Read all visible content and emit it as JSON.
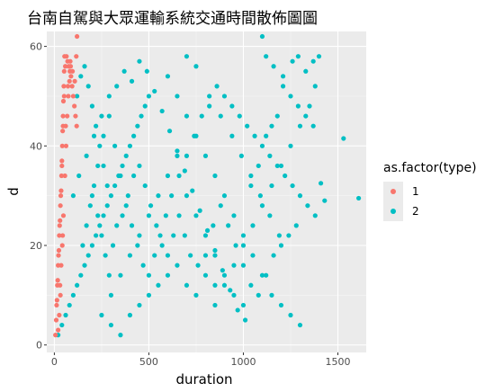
{
  "chart_data": {
    "type": "scatter",
    "title": "台南自駕與大眾運輸系統交通時間散佈圖圖",
    "xlabel": "duration",
    "ylabel": "d",
    "xlim": [
      -40,
      1650
    ],
    "ylim": [
      -1.5,
      63
    ],
    "xticks": [
      0,
      500,
      1000,
      1500
    ],
    "yticks": [
      0,
      20,
      40,
      60
    ],
    "grid": true,
    "legend": {
      "title": "as.factor(type)",
      "placement": "right"
    },
    "colors": {
      "1": "#F8766D",
      "2": "#00BFC4",
      "panel": "#EBEBEB",
      "grid": "#ffffff"
    },
    "series": [
      {
        "name": "1",
        "color": "#F8766D",
        "points": [
          [
            6,
            2
          ],
          [
            10,
            5
          ],
          [
            14,
            9
          ],
          [
            18,
            13
          ],
          [
            20,
            16
          ],
          [
            24,
            19
          ],
          [
            26,
            22
          ],
          [
            30,
            25
          ],
          [
            32,
            28
          ],
          [
            36,
            31
          ],
          [
            38,
            34
          ],
          [
            40,
            37
          ],
          [
            42,
            40
          ],
          [
            44,
            43
          ],
          [
            46,
            46
          ],
          [
            48,
            49
          ],
          [
            50,
            52
          ],
          [
            52,
            55
          ],
          [
            54,
            58
          ],
          [
            120,
            62
          ],
          [
            12,
            8
          ],
          [
            16,
            12
          ],
          [
            22,
            18
          ],
          [
            28,
            24
          ],
          [
            34,
            30
          ],
          [
            40,
            36
          ],
          [
            46,
            44
          ],
          [
            52,
            50
          ],
          [
            58,
            56
          ],
          [
            64,
            58
          ],
          [
            70,
            57
          ],
          [
            76,
            56
          ],
          [
            82,
            55
          ],
          [
            88,
            54
          ],
          [
            94,
            52
          ],
          [
            100,
            50
          ],
          [
            106,
            48
          ],
          [
            112,
            46
          ],
          [
            118,
            44
          ],
          [
            30,
            12
          ],
          [
            36,
            16
          ],
          [
            42,
            20
          ],
          [
            48,
            26
          ],
          [
            56,
            34
          ],
          [
            62,
            40
          ],
          [
            68,
            46
          ],
          [
            74,
            50
          ],
          [
            80,
            53
          ],
          [
            86,
            56
          ],
          [
            20,
            3
          ],
          [
            26,
            6
          ],
          [
            32,
            10
          ],
          [
            44,
            22
          ],
          [
            60,
            44
          ],
          [
            72,
            52
          ],
          [
            84,
            57
          ],
          [
            96,
            55
          ],
          [
            108,
            53
          ],
          [
            116,
            58
          ]
        ]
      },
      {
        "name": "2",
        "color": "#00BFC4",
        "points": [
          [
            20,
            2
          ],
          [
            40,
            4
          ],
          [
            60,
            6
          ],
          [
            80,
            8
          ],
          [
            100,
            10
          ],
          [
            120,
            12
          ],
          [
            140,
            14
          ],
          [
            160,
            16
          ],
          [
            180,
            18
          ],
          [
            200,
            20
          ],
          [
            220,
            22
          ],
          [
            240,
            24
          ],
          [
            260,
            26
          ],
          [
            280,
            28
          ],
          [
            300,
            30
          ],
          [
            320,
            32
          ],
          [
            340,
            34
          ],
          [
            360,
            36
          ],
          [
            380,
            38
          ],
          [
            400,
            40
          ],
          [
            420,
            42
          ],
          [
            440,
            44
          ],
          [
            460,
            46
          ],
          [
            480,
            48
          ],
          [
            500,
            50
          ],
          [
            120,
            50
          ],
          [
            140,
            54
          ],
          [
            160,
            56
          ],
          [
            180,
            52
          ],
          [
            200,
            48
          ],
          [
            220,
            44
          ],
          [
            240,
            40
          ],
          [
            260,
            36
          ],
          [
            280,
            32
          ],
          [
            100,
            30
          ],
          [
            130,
            34
          ],
          [
            170,
            38
          ],
          [
            210,
            42
          ],
          [
            250,
            46
          ],
          [
            290,
            50
          ],
          [
            330,
            52
          ],
          [
            370,
            55
          ],
          [
            410,
            53
          ],
          [
            450,
            57
          ],
          [
            490,
            55
          ],
          [
            530,
            51
          ],
          [
            570,
            47
          ],
          [
            610,
            43
          ],
          [
            650,
            39
          ],
          [
            690,
            35
          ],
          [
            730,
            31
          ],
          [
            770,
            27
          ],
          [
            810,
            23
          ],
          [
            850,
            19
          ],
          [
            890,
            15
          ],
          [
            930,
            11
          ],
          [
            970,
            7
          ],
          [
            1010,
            5
          ],
          [
            600,
            54
          ],
          [
            650,
            50
          ],
          [
            700,
            46
          ],
          [
            750,
            42
          ],
          [
            800,
            38
          ],
          [
            850,
            34
          ],
          [
            900,
            30
          ],
          [
            950,
            26
          ],
          [
            1000,
            22
          ],
          [
            1050,
            18
          ],
          [
            1100,
            14
          ],
          [
            1150,
            10
          ],
          [
            1200,
            8
          ],
          [
            1250,
            6
          ],
          [
            1300,
            4
          ],
          [
            1100,
            62
          ],
          [
            1120,
            58
          ],
          [
            1160,
            56
          ],
          [
            1210,
            54
          ],
          [
            1260,
            57
          ],
          [
            1290,
            58
          ],
          [
            1330,
            55
          ],
          [
            1370,
            57
          ],
          [
            1400,
            58
          ],
          [
            1380,
            52
          ],
          [
            1350,
            48
          ],
          [
            1300,
            44
          ],
          [
            1250,
            40
          ],
          [
            1200,
            36
          ],
          [
            1150,
            32
          ],
          [
            1100,
            28
          ],
          [
            1050,
            24
          ],
          [
            1000,
            20
          ],
          [
            950,
            16
          ],
          [
            900,
            12
          ],
          [
            850,
            8
          ],
          [
            1530,
            41.5
          ],
          [
            1410,
            32.5
          ],
          [
            1430,
            29
          ],
          [
            1610,
            29.5
          ],
          [
            700,
            58
          ],
          [
            750,
            56
          ],
          [
            820,
            50
          ],
          [
            880,
            46
          ],
          [
            940,
            42
          ],
          [
            990,
            38
          ],
          [
            1040,
            34
          ],
          [
            1090,
            30
          ],
          [
            1140,
            26
          ],
          [
            1190,
            22
          ],
          [
            300,
            10
          ],
          [
            350,
            14
          ],
          [
            400,
            18
          ],
          [
            450,
            22
          ],
          [
            500,
            26
          ],
          [
            550,
            30
          ],
          [
            600,
            34
          ],
          [
            650,
            38
          ],
          [
            700,
            30
          ],
          [
            750,
            26
          ],
          [
            800,
            22
          ],
          [
            850,
            18
          ],
          [
            900,
            14
          ],
          [
            950,
            10
          ],
          [
            1000,
            8
          ],
          [
            250,
            6
          ],
          [
            300,
            4
          ],
          [
            350,
            2
          ],
          [
            400,
            6
          ],
          [
            450,
            8
          ],
          [
            500,
            10
          ],
          [
            550,
            12
          ],
          [
            600,
            14
          ],
          [
            650,
            16
          ],
          [
            700,
            12
          ],
          [
            750,
            10
          ],
          [
            800,
            14
          ],
          [
            850,
            12
          ],
          [
            200,
            30
          ],
          [
            230,
            36
          ],
          [
            260,
            42
          ],
          [
            290,
            46
          ],
          [
            320,
            40
          ],
          [
            350,
            34
          ],
          [
            380,
            28
          ],
          [
            410,
            24
          ],
          [
            440,
            20
          ],
          [
            470,
            16
          ],
          [
            500,
            14
          ],
          [
            530,
            18
          ],
          [
            560,
            22
          ],
          [
            590,
            26
          ],
          [
            620,
            30
          ],
          [
            660,
            34
          ],
          [
            700,
            38
          ],
          [
            740,
            42
          ],
          [
            780,
            46
          ],
          [
            820,
            48
          ],
          [
            860,
            52
          ],
          [
            900,
            50
          ],
          [
            940,
            48
          ],
          [
            980,
            46
          ],
          [
            1020,
            44
          ],
          [
            1060,
            42
          ],
          [
            1100,
            40
          ],
          [
            1140,
            38
          ],
          [
            1180,
            36
          ],
          [
            1220,
            34
          ],
          [
            1260,
            32
          ],
          [
            1300,
            30
          ],
          [
            1340,
            28
          ],
          [
            1380,
            26
          ],
          [
            1210,
            52
          ],
          [
            1250,
            50
          ],
          [
            1290,
            48
          ],
          [
            1330,
            46
          ],
          [
            1370,
            44
          ],
          [
            1180,
            46
          ],
          [
            1150,
            44
          ],
          [
            1120,
            42
          ],
          [
            1080,
            36
          ],
          [
            1040,
            32
          ],
          [
            150,
            20
          ],
          [
            170,
            24
          ],
          [
            190,
            28
          ],
          [
            210,
            32
          ],
          [
            230,
            26
          ],
          [
            250,
            22
          ],
          [
            270,
            18
          ],
          [
            290,
            14
          ],
          [
            310,
            20
          ],
          [
            330,
            24
          ],
          [
            360,
            26
          ],
          [
            390,
            30
          ],
          [
            420,
            34
          ],
          [
            450,
            36
          ],
          [
            480,
            32
          ],
          [
            510,
            28
          ],
          [
            540,
            24
          ],
          [
            570,
            20
          ],
          [
            600,
            18
          ],
          [
            630,
            22
          ],
          [
            660,
            26
          ],
          [
            690,
            22
          ],
          [
            720,
            18
          ],
          [
            760,
            16
          ],
          [
            800,
            18
          ],
          [
            840,
            24
          ],
          [
            880,
            28
          ],
          [
            920,
            24
          ],
          [
            960,
            20
          ],
          [
            1000,
            16
          ],
          [
            1040,
            12
          ],
          [
            1080,
            10
          ],
          [
            1120,
            14
          ],
          [
            1160,
            18
          ],
          [
            1200,
            20
          ],
          [
            1240,
            22
          ],
          [
            1280,
            24
          ]
        ]
      }
    ]
  }
}
